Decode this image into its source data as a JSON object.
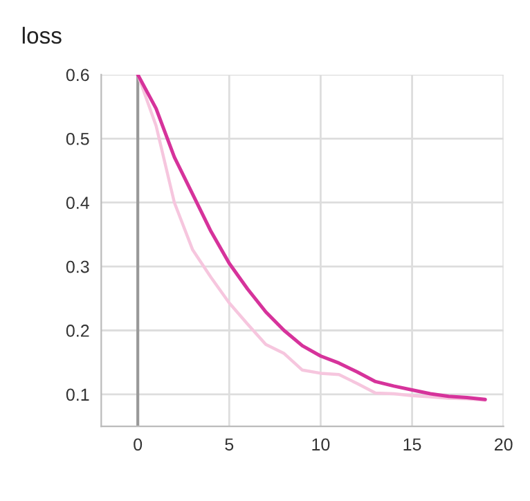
{
  "chart_data": {
    "type": "line",
    "title": "loss",
    "x": [
      0,
      1,
      2,
      3,
      4,
      5,
      6,
      7,
      8,
      9,
      10,
      11,
      12,
      13,
      14,
      15,
      16,
      17,
      18,
      19
    ],
    "series": [
      {
        "color": "#f6c6de",
        "values": [
          0.6,
          0.52,
          0.4,
          0.326,
          0.283,
          0.243,
          0.21,
          0.178,
          0.164,
          0.138,
          0.133,
          0.131,
          0.117,
          0.102,
          0.101,
          0.098,
          0.096,
          0.094,
          0.093,
          0.091
        ]
      },
      {
        "color": "#d6339b",
        "values": [
          0.6,
          0.547,
          0.471,
          0.413,
          0.355,
          0.305,
          0.265,
          0.229,
          0.2,
          0.176,
          0.16,
          0.149,
          0.135,
          0.12,
          0.113,
          0.107,
          0.101,
          0.097,
          0.095,
          0.092
        ]
      }
    ],
    "xlim": [
      -2,
      20
    ],
    "xticks": [
      0,
      5,
      10,
      15,
      20
    ],
    "ylim": [
      0.05,
      0.6
    ],
    "yticks": [
      0.1,
      0.2,
      0.3,
      0.4,
      0.5,
      0.6
    ],
    "ref_lines": [
      {
        "axis": "x",
        "value": 0,
        "color": "#999999"
      }
    ],
    "grid": true,
    "legend": false
  }
}
